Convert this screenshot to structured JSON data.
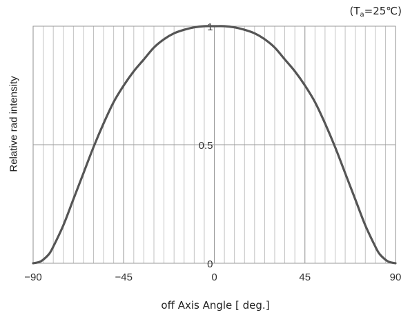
{
  "chart_data": {
    "type": "line",
    "condition": {
      "prefix": "(T",
      "sub": "a",
      "suffix": "=25℃)"
    },
    "xlabel": "off Axis Angle [ deg.]",
    "ylabel": "Relative rad intensity",
    "xlim": [
      -90,
      90
    ],
    "ylim": [
      0,
      1
    ],
    "x_ticks": [
      -90,
      -45,
      0,
      45,
      90
    ],
    "x_tick_labels": [
      "−90",
      "−45",
      "0",
      "45",
      "90"
    ],
    "y_ticks": [
      0,
      0.5,
      1
    ],
    "y_tick_labels": [
      "0",
      "0.5",
      "1"
    ],
    "grid": true,
    "series": [
      {
        "color": "#555555",
        "x": [
          -90,
          -87,
          -85,
          -82,
          -80,
          -75,
          -70,
          -65,
          -60,
          -55,
          -50,
          -45,
          -40,
          -35,
          -30,
          -25,
          -20,
          -15,
          -10,
          -5,
          0,
          5,
          10,
          15,
          20,
          25,
          30,
          35,
          40,
          45,
          50,
          55,
          60,
          65,
          70,
          75,
          80,
          82,
          85,
          87,
          90
        ],
        "y": [
          0,
          0.005,
          0.015,
          0.04,
          0.07,
          0.16,
          0.27,
          0.38,
          0.49,
          0.59,
          0.68,
          0.75,
          0.81,
          0.86,
          0.91,
          0.945,
          0.97,
          0.985,
          0.995,
          1.0,
          1.0,
          1.0,
          0.995,
          0.985,
          0.97,
          0.945,
          0.91,
          0.86,
          0.81,
          0.75,
          0.68,
          0.59,
          0.49,
          0.38,
          0.27,
          0.16,
          0.07,
          0.04,
          0.015,
          0.005,
          0
        ]
      }
    ]
  }
}
